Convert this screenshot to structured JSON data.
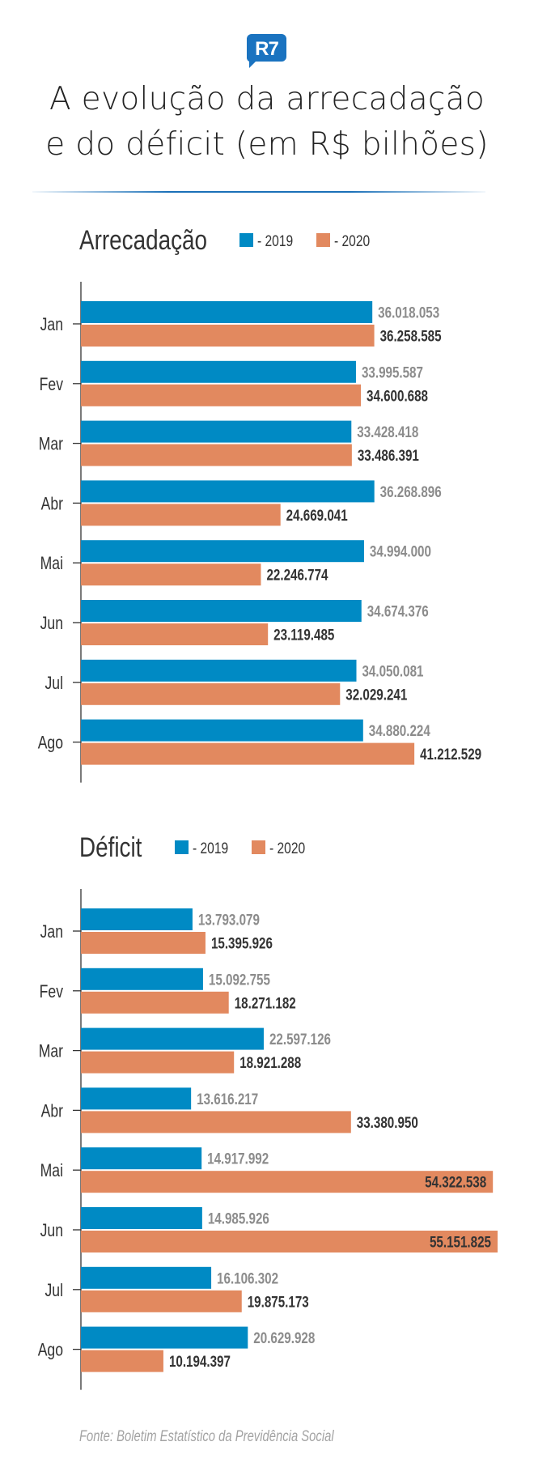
{
  "brand": {
    "logo_text": "R7",
    "logo_color": "#1a73c0"
  },
  "header": {
    "title_line1": "A evolução da arrecadação",
    "title_line2": "e do déficit (em R$ bilhões)"
  },
  "colors": {
    "series_2019": "#008ac4",
    "series_2020": "#e2895f",
    "label_2019": "#8c8c8c",
    "label_2020": "#333333",
    "axis": "#333333"
  },
  "footer": {
    "source": "Fonte: Boletim Estatístico da Previdência Social"
  },
  "chart_data": [
    {
      "type": "bar",
      "orientation": "horizontal",
      "title": "Arrecadação",
      "legend_position": "top",
      "categories": [
        "Jan",
        "Fev",
        "Mar",
        "Abr",
        "Mai",
        "Jun",
        "Jul",
        "Ago"
      ],
      "series": [
        {
          "name": "- 2019",
          "values": [
            36018053,
            33995587,
            33428418,
            36268896,
            34994000,
            34674376,
            34050081,
            34880224
          ],
          "labels": [
            "36.018.053",
            "33.995.587",
            "33.428.418",
            "36.268.896",
            "34.994.000",
            "34.674.376",
            "34.050.081",
            "34.880.224"
          ]
        },
        {
          "name": "- 2020",
          "values": [
            36258585,
            34600688,
            33486391,
            24669041,
            22246774,
            23119485,
            32029241,
            41212529
          ],
          "labels": [
            "36.258.585",
            "34.600.688",
            "33.486.391",
            "24.669.041",
            "22.246.774",
            "23.119.485",
            "32.029.241",
            "41.212.529"
          ]
        }
      ],
      "xlabel": "",
      "ylabel": "",
      "grid": false
    },
    {
      "type": "bar",
      "orientation": "horizontal",
      "title": "Déficit",
      "legend_position": "top",
      "categories": [
        "Jan",
        "Fev",
        "Mar",
        "Abr",
        "Mai",
        "Jun",
        "Jul",
        "Ago"
      ],
      "series": [
        {
          "name": "- 2019",
          "values": [
            13793079,
            15092755,
            22597126,
            13616217,
            14917992,
            14985926,
            16106302,
            20629928
          ],
          "labels": [
            "13.793.079",
            "15.092.755",
            "22.597.126",
            "13.616.217",
            "14.917.992",
            "14.985.926",
            "16.106.302",
            "20.629.928"
          ]
        },
        {
          "name": "- 2020",
          "values": [
            15395926,
            18271182,
            18921288,
            33380950,
            54322538,
            55151825,
            19875173,
            10194397
          ],
          "labels": [
            "15.395.926",
            "18.271.182",
            "18.921.288",
            "33.380.950",
            "54.322.538",
            "55.151.825",
            "19.875.173",
            "10.194.397"
          ]
        }
      ],
      "xlabel": "",
      "ylabel": "",
      "grid": false
    }
  ]
}
